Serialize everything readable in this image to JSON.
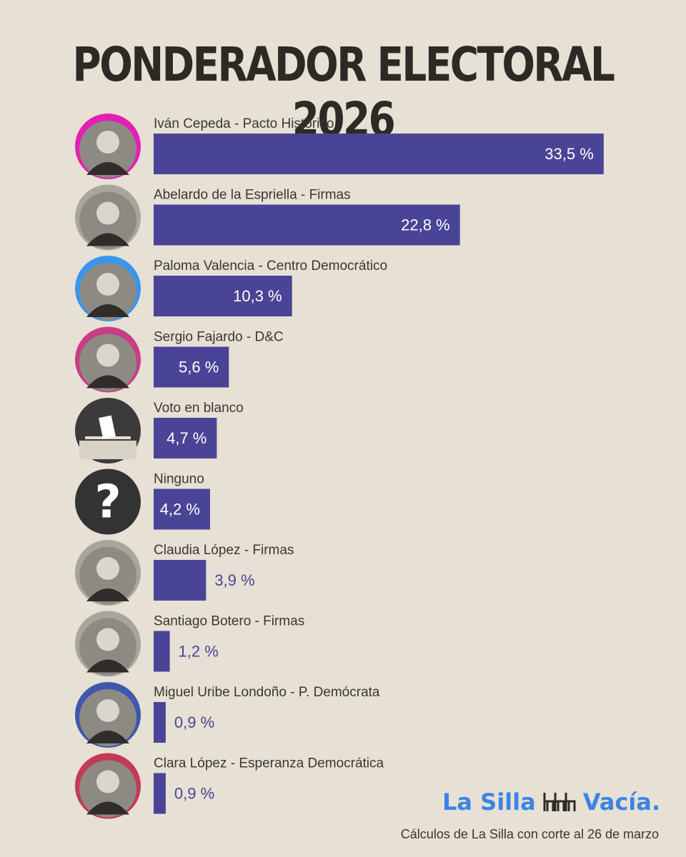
{
  "header": {
    "title": "PONDERADOR ELECTORAL 2026"
  },
  "chart_data": {
    "type": "bar",
    "orientation": "horizontal",
    "title": "PONDERADOR ELECTORAL 2026",
    "categories": [
      "Iván Cepeda - Pacto Histórico",
      "Abelardo de la Espriella - Firmas",
      "Paloma Valencia - Centro Democrático",
      "Sergio Fajardo - D&C",
      "Voto en blanco",
      "Ninguno",
      "Claudia López - Firmas",
      "Santiago Botero - Firmas",
      "Miguel Uribe Londoño - P. Demócrata",
      "Clara López - Esperanza Democrática"
    ],
    "values": [
      33.5,
      22.8,
      10.3,
      5.6,
      4.7,
      4.2,
      3.9,
      1.2,
      0.9,
      0.9
    ],
    "value_labels": [
      "33,5 %",
      "22,8 %",
      "10,3 %",
      "5,6 %",
      "4,7 %",
      "4,2 %",
      "3,9 %",
      "1,2 %",
      "0,9 %",
      "0,9 %"
    ],
    "avatar_ring_colors": [
      "#e41fb4",
      "#a8a59c",
      "#3a96ec",
      "#c83e86",
      "#3b3b3b",
      "#333333",
      "#a8a59c",
      "#a8a59c",
      "#3e58ab",
      "#c33a55"
    ],
    "avatar_icons": [
      "portrait-icon",
      "portrait-icon",
      "portrait-icon",
      "portrait-icon",
      "ballot-box-icon",
      "question-mark-icon",
      "portrait-icon",
      "portrait-icon",
      "portrait-icon",
      "portrait-icon"
    ],
    "bar_color": "#4a4496",
    "label_color_inside": "#ffffff",
    "label_color_outside": "#4a4496"
  },
  "brand": {
    "logo_text_left": "La Silla",
    "logo_text_right": "Vacía.",
    "logo_color": "#3a84e6"
  },
  "footer": {
    "note": "Cálculos de La Silla con corte al 26 de marzo"
  }
}
